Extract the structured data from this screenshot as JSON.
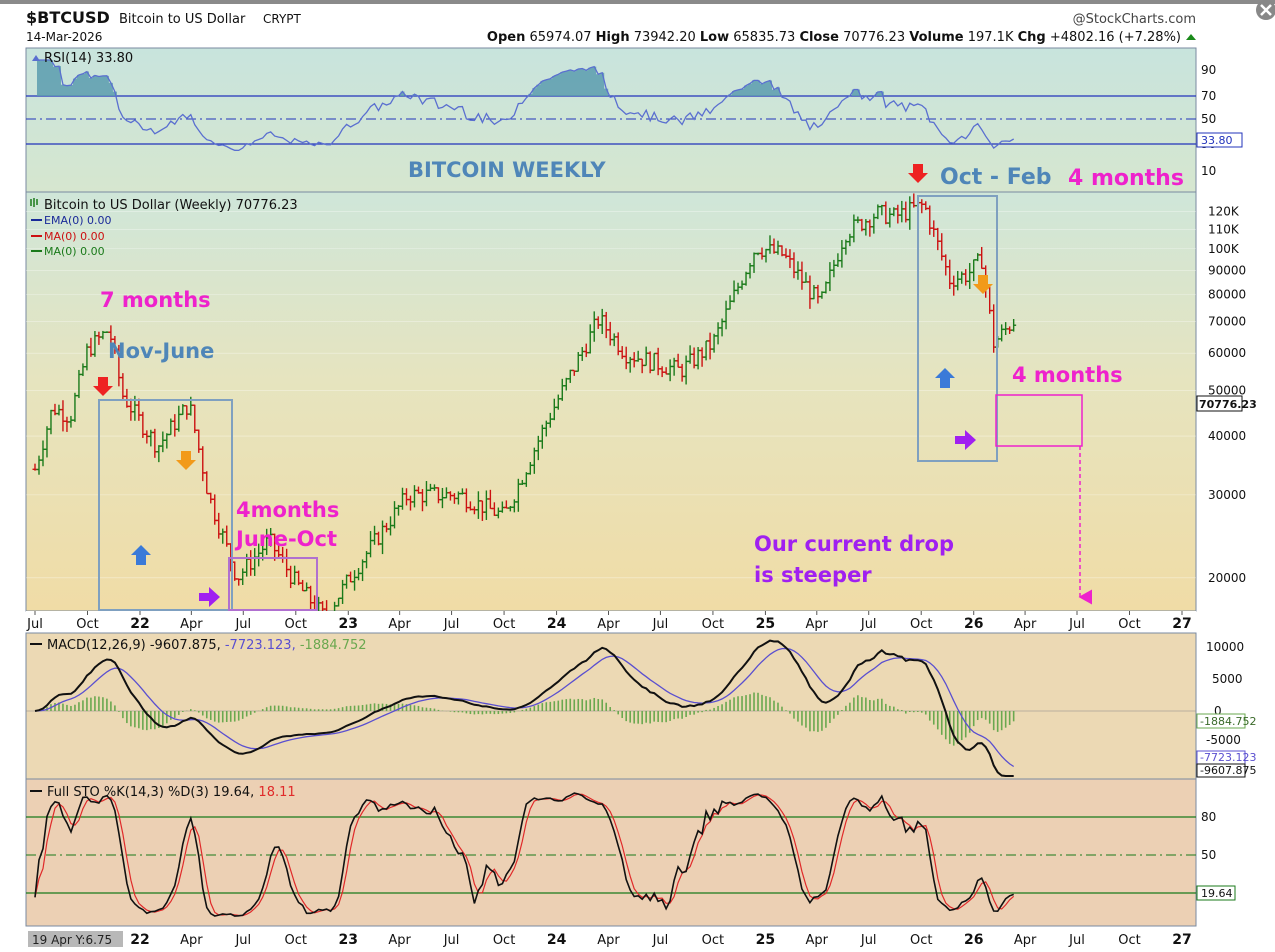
{
  "header": {
    "symbol": "$BTCUSD",
    "name": "Bitcoin to US Dollar",
    "exchange": "CRYPT",
    "date": "14-Mar-2026",
    "source": "@StockCharts.com",
    "quote": {
      "open_label": "Open",
      "open": "65974.07",
      "high_label": "High",
      "high": "73942.20",
      "low_label": "Low",
      "low": "65835.73",
      "close_label": "Close",
      "close": "70776.23",
      "volume_label": "Volume",
      "volume": "197.1K",
      "chg_label": "Chg",
      "chg": "+4802.16 (+7.28%)"
    }
  },
  "rsi_panel": {
    "legend": "RSI(14) 33.80",
    "ticks": [
      "90",
      "70",
      "50",
      "30",
      "10"
    ],
    "value_label": "33.80",
    "title_annotation": "BITCOIN WEEKLY"
  },
  "price_panel": {
    "legend_main": "Bitcoin to US Dollar (Weekly) 70776.23",
    "legend_ema": "EMA(0) 0.00",
    "legend_ma_red": "MA(0) 0.00",
    "legend_ma_green": "MA(0) 0.00",
    "y_ticks": [
      "120K",
      "110K",
      "100K",
      "90000",
      "80000",
      "70000",
      "60000",
      "50000",
      "40000",
      "30000",
      "20000"
    ],
    "last_label": "70776.23",
    "x_ticks": [
      "Jul",
      "Oct",
      "22",
      "Apr",
      "Jul",
      "Oct",
      "23",
      "Apr",
      "Jul",
      "Oct",
      "24",
      "Apr",
      "Jul",
      "Oct",
      "25",
      "Apr",
      "Jul",
      "Oct",
      "26",
      "Apr",
      "Jul",
      "Oct",
      "27"
    ]
  },
  "annotations": {
    "seven_months": "7 months",
    "nov_june": "Nov-June",
    "four_months_a": "4months",
    "june_oct": "June-Oct",
    "oct_feb": "Oct - Feb",
    "four_months_b": "4 months",
    "four_months_c": "4 months",
    "current_drop_1": "Our current drop",
    "current_drop_2": "is steeper"
  },
  "macd_panel": {
    "legend_prefix": "MACD(12,26,9) -9607.875,",
    "legend_signal": "-7723.123,",
    "legend_hist": "-1884.752",
    "ticks": [
      "10000",
      "5000",
      "0",
      "-5000"
    ],
    "label_hist": "-1884.752",
    "label_signal": "-7723.123",
    "label_macd": "-9607.875"
  },
  "sto_panel": {
    "legend_prefix": "Full STO %K(14,3) %D(3) 19.64,",
    "legend_d": "18.11",
    "ticks": [
      "80",
      "50"
    ],
    "value_label": "19.64",
    "x_ticks": [
      "22",
      "Apr",
      "Jul",
      "Oct",
      "23",
      "Apr",
      "Jul",
      "Oct",
      "24",
      "Apr",
      "Jul",
      "Oct",
      "25",
      "Apr",
      "Jul",
      "Oct",
      "26",
      "Apr",
      "Jul",
      "Oct",
      "27"
    ],
    "cursor_readout": "19 Apr Y:6.75"
  },
  "colors": {
    "up_candle": "#1a7a1a",
    "down_candle": "#cc1111",
    "rsi_line": "#5a6fd0",
    "macd_line": "#111111",
    "signal_line": "#5a4fd0",
    "histogram": "#6aa84f",
    "annotation_pink": "#ee22cc",
    "annotation_blue": "#4f86b8",
    "annotation_purple": "#a020f0"
  },
  "chart_data": {
    "type": "candlestick",
    "title": "$BTCUSD Bitcoin to US Dollar CRYPT (Weekly)",
    "price_scale": "log",
    "ylim": [
      17000,
      132000
    ],
    "x_range": [
      "2021-07-01",
      "2027-01-01"
    ],
    "close_series": [
      {
        "date": "2021-07-01",
        "close": 34000
      },
      {
        "date": "2021-08-01",
        "close": 46000
      },
      {
        "date": "2021-09-01",
        "close": 44000
      },
      {
        "date": "2021-10-01",
        "close": 61000
      },
      {
        "date": "2021-11-08",
        "close": 67500
      },
      {
        "date": "2021-12-01",
        "close": 49000
      },
      {
        "date": "2022-01-01",
        "close": 43000
      },
      {
        "date": "2022-02-01",
        "close": 38000
      },
      {
        "date": "2022-03-28",
        "close": 47000
      },
      {
        "date": "2022-05-01",
        "close": 30000
      },
      {
        "date": "2022-06-20",
        "close": 20000
      },
      {
        "date": "2022-08-15",
        "close": 24000
      },
      {
        "date": "2022-10-01",
        "close": 19500
      },
      {
        "date": "2022-11-20",
        "close": 16500
      },
      {
        "date": "2023-01-15",
        "close": 21000
      },
      {
        "date": "2023-04-15",
        "close": 30000
      },
      {
        "date": "2023-07-15",
        "close": 30000
      },
      {
        "date": "2023-10-01",
        "close": 27000
      },
      {
        "date": "2023-12-15",
        "close": 43000
      },
      {
        "date": "2024-03-15",
        "close": 71000
      },
      {
        "date": "2024-05-01",
        "close": 60000
      },
      {
        "date": "2024-08-05",
        "close": 55000
      },
      {
        "date": "2024-10-01",
        "close": 63000
      },
      {
        "date": "2024-12-15",
        "close": 101000
      },
      {
        "date": "2025-02-01",
        "close": 97000
      },
      {
        "date": "2025-04-07",
        "close": 76000
      },
      {
        "date": "2025-05-20",
        "close": 108000
      },
      {
        "date": "2025-07-15",
        "close": 119000
      },
      {
        "date": "2025-08-15",
        "close": 117000
      },
      {
        "date": "2025-10-06",
        "close": 124000
      },
      {
        "date": "2025-11-20",
        "close": 86000
      },
      {
        "date": "2025-12-20",
        "close": 88000
      },
      {
        "date": "2026-01-15",
        "close": 95000
      },
      {
        "date": "2026-02-05",
        "close": 63000
      },
      {
        "date": "2026-03-14",
        "close": 70776
      }
    ],
    "rsi": {
      "period": 14,
      "last": 33.8,
      "levels": [
        30,
        50,
        70
      ]
    },
    "macd": {
      "params": "12,26,9",
      "macd": -9607.875,
      "signal": -7723.123,
      "histogram": -1884.752,
      "ylim": [
        -13000,
        11000
      ]
    },
    "stochastic": {
      "params": "%K(14,3) %D(3)",
      "k": 19.64,
      "d": 18.11,
      "levels": [
        20,
        50,
        80
      ]
    }
  }
}
